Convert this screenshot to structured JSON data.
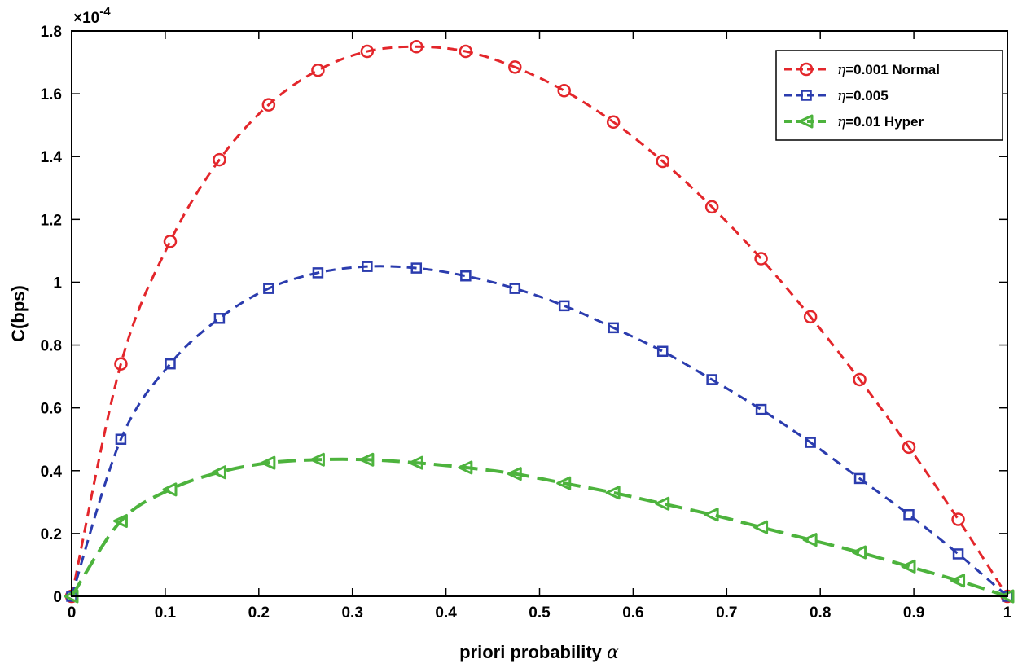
{
  "chart_data": {
    "type": "line",
    "title": "",
    "xlabel": "priori probability",
    "xlabel_symbol": "α",
    "ylabel": "C(bps)",
    "y_scale_label": "×10",
    "y_scale_exponent": "-4",
    "xlim": [
      0,
      1
    ],
    "ylim": [
      0,
      1.8
    ],
    "xticks": [
      "0",
      "0.1",
      "0.2",
      "0.3",
      "0.4",
      "0.5",
      "0.6",
      "0.7",
      "0.8",
      "0.9",
      "1"
    ],
    "yticks": [
      "0",
      "0.2",
      "0.4",
      "0.6",
      "0.8",
      "1",
      "1.2",
      "1.4",
      "1.6",
      "1.8"
    ],
    "legend_position": "top-right",
    "x": [
      0,
      0.0526,
      0.1053,
      0.1579,
      0.2105,
      0.2632,
      0.3158,
      0.3684,
      0.4211,
      0.4737,
      0.5263,
      0.5789,
      0.6316,
      0.6842,
      0.7368,
      0.7895,
      0.8421,
      0.8947,
      0.9474,
      1.0
    ],
    "series": [
      {
        "name": "η=0.001 Normal",
        "symbol": "η",
        "label_rest": "=0.001 Normal",
        "color": "#e3262b",
        "marker": "circle",
        "values": [
          0,
          0.74,
          1.13,
          1.39,
          1.565,
          1.675,
          1.735,
          1.75,
          1.735,
          1.685,
          1.61,
          1.51,
          1.385,
          1.24,
          1.075,
          0.89,
          0.69,
          0.475,
          0.245,
          0
        ]
      },
      {
        "name": "η=0.005",
        "symbol": "η",
        "label_rest": "=0.005",
        "color": "#2b3cae",
        "marker": "square",
        "values": [
          0,
          0.5,
          0.74,
          0.885,
          0.98,
          1.03,
          1.05,
          1.045,
          1.02,
          0.98,
          0.925,
          0.855,
          0.78,
          0.69,
          0.595,
          0.49,
          0.375,
          0.26,
          0.135,
          0
        ]
      },
      {
        "name": "η=0.01 Hyper",
        "symbol": "η",
        "label_rest": "=0.01 Hyper",
        "color": "#4db33d",
        "marker": "triangle-left",
        "values": [
          0,
          0.24,
          0.34,
          0.395,
          0.425,
          0.435,
          0.435,
          0.425,
          0.41,
          0.39,
          0.36,
          0.33,
          0.295,
          0.26,
          0.22,
          0.18,
          0.14,
          0.095,
          0.05,
          0
        ]
      }
    ]
  }
}
